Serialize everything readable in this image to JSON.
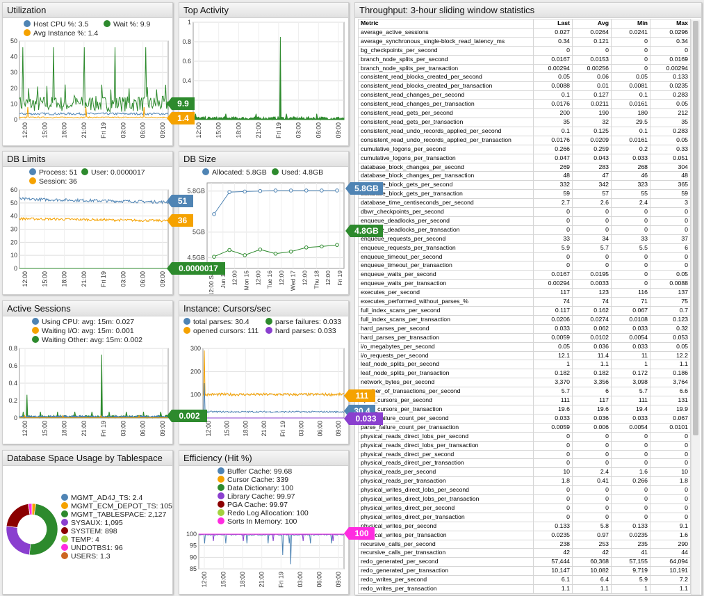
{
  "colors": {
    "blue": "#4f84b4",
    "green": "#2d8a2d",
    "orange": "#f5a200",
    "purple": "#8a3fcf",
    "dkred": "#8b0000",
    "lime": "#a3d13f",
    "magenta": "#ff2be0",
    "brown": "#cc6622"
  },
  "panels": {
    "utilization": {
      "title": "Utilization",
      "legend": [
        {
          "label": "Host CPU %: 3.5",
          "color": "#4f84b4"
        },
        {
          "label": "Wait %: 9.9",
          "color": "#2d8a2d"
        },
        {
          "label": "Avg Instance %: 1.4",
          "color": "#f5a200"
        }
      ],
      "yticks": [
        "50",
        "40",
        "30",
        "20",
        "10",
        "0"
      ],
      "xticks": [
        "12:00",
        "15:00",
        "18:00",
        "21:00",
        "Fri 19",
        "03:00",
        "06:00",
        "09:00"
      ],
      "callouts": [
        {
          "text": "9.9",
          "color": "#2d8a2d"
        },
        {
          "text": "1.4",
          "color": "#f5a200"
        }
      ]
    },
    "top_activity": {
      "title": "Top Activity",
      "yticks": [
        "1",
        "0.8",
        "0.6",
        "0.4",
        "0.2",
        "0"
      ],
      "xticks": [
        "12:00",
        "15:00",
        "18:00",
        "21:00",
        "Fri 19",
        "03:00",
        "06:00",
        "09:00"
      ]
    },
    "db_limits": {
      "title": "DB Limits",
      "legend": [
        {
          "label": "Process: 51",
          "color": "#4f84b4"
        },
        {
          "label": "User: 0.0000017",
          "color": "#2d8a2d"
        },
        {
          "label": "Session: 36",
          "color": "#f5a200"
        }
      ],
      "yticks": [
        "60",
        "50",
        "40",
        "30",
        "20",
        "10",
        "0"
      ],
      "xticks": [
        "12:00",
        "15:00",
        "18:00",
        "21:00",
        "Fri 19",
        "03:00",
        "06:00",
        "09:00"
      ],
      "callouts": [
        {
          "text": "51",
          "color": "#4f84b4"
        },
        {
          "text": "36",
          "color": "#f5a200"
        },
        {
          "text": "0.0000017",
          "color": "#2d8a2d"
        }
      ]
    },
    "db_size": {
      "title": "DB Size",
      "legend": [
        {
          "label": "Allocated: 5.8GB",
          "color": "#4f84b4"
        },
        {
          "label": "Used: 4.8GB",
          "color": "#2d8a2d"
        }
      ],
      "yticks": [
        "5.8GB",
        "5GB",
        "4.5GB"
      ],
      "xticks": [
        "12:00 Sat",
        "Jun 14",
        "12:00",
        "Mon 15",
        "12:00",
        "Tue 16",
        "12:00",
        "Wed 17",
        "12:00",
        "Thu 18",
        "12:00",
        "Fri 19"
      ],
      "callouts": [
        {
          "text": "5.8GB",
          "color": "#4f84b4"
        },
        {
          "text": "4.8GB",
          "color": "#2d8a2d"
        }
      ]
    },
    "active_sessions": {
      "title": "Active Sessions",
      "legend": [
        {
          "label": "Using CPU: avg: 15m: 0.027",
          "color": "#4f84b4"
        },
        {
          "label": "Waiting I/O: avg: 15m: 0.001",
          "color": "#f5a200"
        },
        {
          "label": "Waiting Other: avg: 15m: 0.002",
          "color": "#2d8a2d"
        }
      ],
      "yticks": [
        "0.8",
        "0.6",
        "0.4",
        "0.2",
        "0"
      ],
      "xticks": [
        "12:00",
        "15:00",
        "18:00",
        "21:00",
        "Fri 19",
        "03:00",
        "06:00",
        "09:00"
      ],
      "callouts": [
        {
          "text": "0.002",
          "color": "#2d8a2d"
        }
      ]
    },
    "cursors": {
      "title": "Instance: Cursors/sec",
      "legend": [
        {
          "label": "total parses: 30.4",
          "color": "#4f84b4"
        },
        {
          "label": "parse failures: 0.033",
          "color": "#2d8a2d"
        },
        {
          "label": "opened cursors: 111",
          "color": "#f5a200"
        },
        {
          "label": "hard parses: 0.033",
          "color": "#8a3fcf"
        }
      ],
      "yticks": [
        "300",
        "200",
        "100",
        "0"
      ],
      "xticks": [
        "12:00",
        "15:00",
        "18:00",
        "21:00",
        "Fri 19",
        "03:00",
        "06:00",
        "09:00"
      ],
      "callouts": [
        {
          "text": "111",
          "color": "#f5a200"
        },
        {
          "text": "30.4",
          "color": "#4f84b4"
        },
        {
          "text": "0.033",
          "color": "#8a3fcf"
        }
      ]
    },
    "space": {
      "title": "Database Space Usage by Tablespace",
      "legend": [
        {
          "label": "MGMT_AD4J_TS: 2.4",
          "color": "#4f84b4"
        },
        {
          "label": "MGMT_ECM_DEPOT_TS: 105",
          "color": "#f5a200"
        },
        {
          "label": "MGMT_TABLESPACE: 2,127",
          "color": "#2d8a2d"
        },
        {
          "label": "SYSAUX: 1,095",
          "color": "#8a3fcf"
        },
        {
          "label": "SYSTEM: 898",
          "color": "#8b0000"
        },
        {
          "label": "TEMP: 4",
          "color": "#a3d13f"
        },
        {
          "label": "UNDOTBS1: 96",
          "color": "#ff2be0"
        },
        {
          "label": "USERS: 1.3",
          "color": "#cc6622"
        }
      ]
    },
    "efficiency": {
      "title": "Efficiency (Hit %)",
      "legend": [
        {
          "label": "Buffer Cache: 99.68",
          "color": "#4f84b4"
        },
        {
          "label": "Cursor Cache: 339",
          "color": "#f5a200"
        },
        {
          "label": "Data Dictionary: 100",
          "color": "#2d8a2d"
        },
        {
          "label": "Library Cache: 99.97",
          "color": "#8a3fcf"
        },
        {
          "label": "PGA Cache: 99.97",
          "color": "#8b0000"
        },
        {
          "label": "Redo Log Allocation: 100",
          "color": "#a3d13f"
        },
        {
          "label": "Sorts In Memory: 100",
          "color": "#ff2be0"
        }
      ],
      "yticks": [
        "100",
        "95",
        "90",
        "85"
      ],
      "xticks": [
        "12:00",
        "15:00",
        "18:00",
        "21:00",
        "Fri 19",
        "03:00",
        "06:00",
        "09:00"
      ],
      "callouts": [
        {
          "text": "100",
          "color": "#ff2be0"
        }
      ]
    }
  },
  "throughput": {
    "title": "Throughput: 3-hour sliding window statistics",
    "headers": [
      "Metric",
      "Last",
      "Avg",
      "Min",
      "Max"
    ],
    "rows": [
      [
        "average_active_sessions",
        "0.027",
        "0.0264",
        "0.0241",
        "0.0296"
      ],
      [
        "average_synchronous_single-block_read_latency_ms",
        "0.34",
        "0.121",
        "0",
        "0.34"
      ],
      [
        "bg_checkpoints_per_second",
        "0",
        "0",
        "0",
        "0"
      ],
      [
        "branch_node_splits_per_second",
        "0.0167",
        "0.0153",
        "0",
        "0.0169"
      ],
      [
        "branch_node_splits_per_transaction",
        "0.00294",
        "0.00256",
        "0",
        "0.00294"
      ],
      [
        "consistent_read_blocks_created_per_second",
        "0.05",
        "0.06",
        "0.05",
        "0.133"
      ],
      [
        "consistent_read_blocks_created_per_transaction",
        "0.0088",
        "0.01",
        "0.0081",
        "0.0235"
      ],
      [
        "consistent_read_changes_per_second",
        "0.1",
        "0.127",
        "0.1",
        "0.283"
      ],
      [
        "consistent_read_changes_per_transaction",
        "0.0176",
        "0.0211",
        "0.0161",
        "0.05"
      ],
      [
        "consistent_read_gets_per_second",
        "200",
        "190",
        "180",
        "212"
      ],
      [
        "consistent_read_gets_per_transaction",
        "35",
        "32",
        "29.5",
        "35"
      ],
      [
        "consistent_read_undo_records_applied_per_second",
        "0.1",
        "0.125",
        "0.1",
        "0.283"
      ],
      [
        "consistent_read_undo_records_applied_per_transaction",
        "0.0176",
        "0.0209",
        "0.0161",
        "0.05"
      ],
      [
        "cumulative_logons_per_second",
        "0.266",
        "0.259",
        "0.2",
        "0.33"
      ],
      [
        "cumulative_logons_per_transaction",
        "0.047",
        "0.043",
        "0.033",
        "0.051"
      ],
      [
        "database_block_changes_per_second",
        "269",
        "283",
        "268",
        "304"
      ],
      [
        "database_block_changes_per_transaction",
        "48",
        "47",
        "46",
        "48"
      ],
      [
        "database_block_gets_per_second",
        "332",
        "342",
        "323",
        "365"
      ],
      [
        "database_block_gets_per_transaction",
        "59",
        "57",
        "55",
        "59"
      ],
      [
        "database_time_centiseconds_per_second",
        "2.7",
        "2.6",
        "2.4",
        "3"
      ],
      [
        "dbwr_checkpoints_per_second",
        "0",
        "0",
        "0",
        "0"
      ],
      [
        "enqueue_deadlocks_per_second",
        "0",
        "0",
        "0",
        "0"
      ],
      [
        "enqueue_deadlocks_per_transaction",
        "0",
        "0",
        "0",
        "0"
      ],
      [
        "enqueue_requests_per_second",
        "33",
        "34",
        "33",
        "37"
      ],
      [
        "enqueue_requests_per_transaction",
        "5.9",
        "5.7",
        "5.5",
        "6"
      ],
      [
        "enqueue_timeout_per_second",
        "0",
        "0",
        "0",
        "0"
      ],
      [
        "enqueue_timeout_per_transaction",
        "0",
        "0",
        "0",
        "0"
      ],
      [
        "enqueue_waits_per_second",
        "0.0167",
        "0.0195",
        "0",
        "0.05"
      ],
      [
        "enqueue_waits_per_transaction",
        "0.00294",
        "0.0033",
        "0",
        "0.0088"
      ],
      [
        "executes_per_second",
        "117",
        "123",
        "116",
        "137"
      ],
      [
        "executes_performed_without_parses_%",
        "74",
        "74",
        "71",
        "75"
      ],
      [
        "full_index_scans_per_second",
        "0.117",
        "0.162",
        "0.067",
        "0.7"
      ],
      [
        "full_index_scans_per_transaction",
        "0.0206",
        "0.0274",
        "0.0108",
        "0.123"
      ],
      [
        "hard_parses_per_second",
        "0.033",
        "0.062",
        "0.033",
        "0.32"
      ],
      [
        "hard_parses_per_transaction",
        "0.0059",
        "0.0102",
        "0.0054",
        "0.053"
      ],
      [
        "i/o_megabytes_per_second",
        "0.05",
        "0.036",
        "0.033",
        "0.05"
      ],
      [
        "i/o_requests_per_second",
        "12.1",
        "11.4",
        "11",
        "12.2"
      ],
      [
        "leaf_node_splits_per_second",
        "1",
        "1.1",
        "1",
        "1.1"
      ],
      [
        "leaf_node_splits_per_transaction",
        "0.182",
        "0.182",
        "0.172",
        "0.186"
      ],
      [
        "network_bytes_per_second",
        "3,370",
        "3,356",
        "3,098",
        "3,764"
      ],
      [
        "number_of_transactions_per_second",
        "5.7",
        "6",
        "5.7",
        "6.6"
      ],
      [
        "open_cursors_per_second",
        "111",
        "117",
        "111",
        "131"
      ],
      [
        "open_cursors_per_transaction",
        "19.6",
        "19.6",
        "19.4",
        "19.9"
      ],
      [
        "parse_failure_count_per_second",
        "0.033",
        "0.036",
        "0.033",
        "0.067"
      ],
      [
        "parse_failure_count_per_transaction",
        "0.0059",
        "0.006",
        "0.0054",
        "0.0101"
      ],
      [
        "physical_reads_direct_lobs_per_second",
        "0",
        "0",
        "0",
        "0"
      ],
      [
        "physical_reads_direct_lobs_per_transaction",
        "0",
        "0",
        "0",
        "0"
      ],
      [
        "physical_reads_direct_per_second",
        "0",
        "0",
        "0",
        "0"
      ],
      [
        "physical_reads_direct_per_transaction",
        "0",
        "0",
        "0",
        "0"
      ],
      [
        "physical_reads_per_second",
        "10",
        "2.4",
        "1.6",
        "10"
      ],
      [
        "physical_reads_per_transaction",
        "1.8",
        "0.41",
        "0.266",
        "1.8"
      ],
      [
        "physical_writes_direct_lobs_per_second",
        "0",
        "0",
        "0",
        "0"
      ],
      [
        "physical_writes_direct_lobs_per_transaction",
        "0",
        "0",
        "0",
        "0"
      ],
      [
        "physical_writes_direct_per_second",
        "0",
        "0",
        "0",
        "0"
      ],
      [
        "physical_writes_direct_per_transaction",
        "0",
        "0",
        "0",
        "0"
      ],
      [
        "physical_writes_per_second",
        "0.133",
        "5.8",
        "0.133",
        "9.1"
      ],
      [
        "physical_writes_per_transaction",
        "0.0235",
        "0.97",
        "0.0235",
        "1.6"
      ],
      [
        "recursive_calls_per_second",
        "238",
        "253",
        "235",
        "290"
      ],
      [
        "recursive_calls_per_transaction",
        "42",
        "42",
        "41",
        "44"
      ],
      [
        "redo_generated_per_second",
        "57,444",
        "60,368",
        "57,155",
        "64,094"
      ],
      [
        "redo_generated_per_transaction",
        "10,147",
        "10,082",
        "9,719",
        "10,191"
      ],
      [
        "redo_writes_per_second",
        "6.1",
        "6.4",
        "5.9",
        "7.2"
      ],
      [
        "redo_writes_per_transaction",
        "1.1",
        "1.1",
        "1",
        "1.1"
      ]
    ]
  }
}
